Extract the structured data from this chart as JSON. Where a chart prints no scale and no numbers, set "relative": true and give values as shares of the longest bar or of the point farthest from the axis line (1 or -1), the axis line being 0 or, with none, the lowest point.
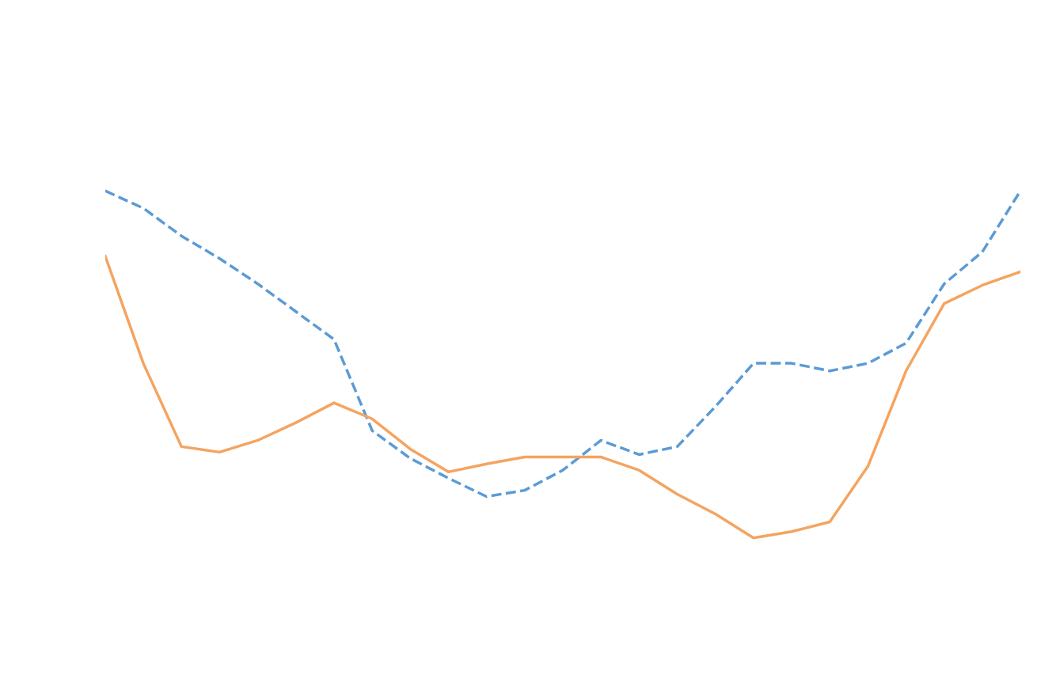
{
  "chart_data": {
    "type": "line",
    "relative": true,
    "line_style": "solid",
    "categories": [
      null,
      null,
      null,
      null,
      null,
      null,
      null,
      null,
      null,
      null,
      null,
      null,
      null,
      null,
      null,
      null,
      null,
      null,
      null,
      null,
      null,
      null,
      null,
      null,
      null
    ],
    "series": [
      {
        "color": "#5b9bd5",
        "line_style": "dashed",
        "values": [
          1.0,
          0.95,
          0.87,
          0.805,
          0.732,
          0.652,
          0.572,
          0.309,
          0.229,
          0.172,
          0.119,
          0.137,
          0.195,
          0.281,
          0.24,
          0.263,
          0.378,
          0.503,
          0.503,
          0.481,
          0.503,
          0.561,
          0.732,
          0.824,
          1.0
        ]
      },
      {
        "color": "#f4a460",
        "values": [
          0.812,
          0.503,
          0.263,
          0.247,
          0.281,
          0.332,
          0.389,
          0.343,
          0.256,
          0.19,
          0.213,
          0.233,
          0.233,
          0.233,
          0.195,
          0.126,
          0.069,
          0.0,
          0.018,
          0.046,
          0.206,
          0.481,
          0.675,
          0.728,
          0.767
        ]
      }
    ]
  }
}
